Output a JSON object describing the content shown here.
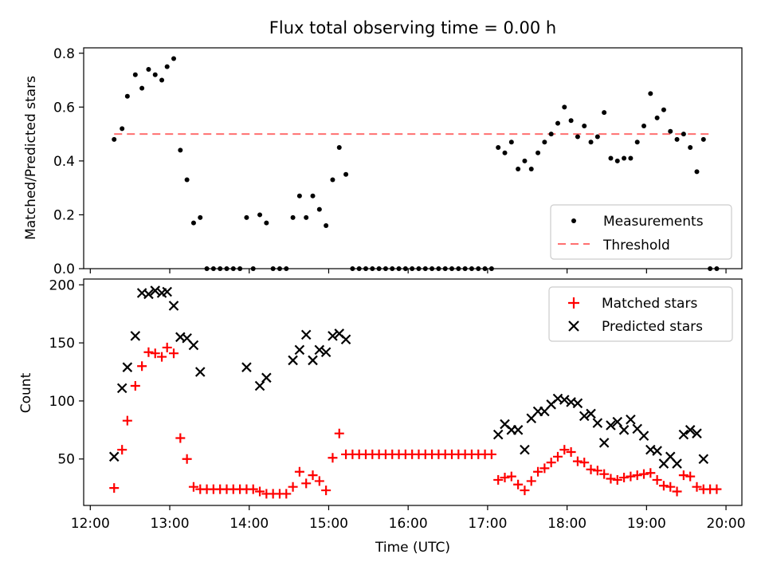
{
  "title": "Flux total observing time = 0.00 h",
  "chart_data": [
    {
      "type": "scatter",
      "ylabel": "Matched/Predicted stars",
      "ylim": [
        0,
        0.82
      ],
      "yticks": [
        "0.0",
        "0.2",
        "0.4",
        "0.6",
        "0.8"
      ],
      "xlim": [
        "11:55",
        "20:12"
      ],
      "legend_position": "lower-right",
      "threshold": {
        "name": "Threshold",
        "value": 0.5,
        "x_start": "12:18",
        "x_end": "19:50",
        "color": "#ff7070"
      },
      "series": [
        {
          "name": "Measurements",
          "color": "#000000",
          "points": [
            [
              "12:18",
              0.48
            ],
            [
              "12:24",
              0.52
            ],
            [
              "12:28",
              0.64
            ],
            [
              "12:34",
              0.72
            ],
            [
              "12:39",
              0.67
            ],
            [
              "12:44",
              0.74
            ],
            [
              "12:49",
              0.72
            ],
            [
              "12:54",
              0.7
            ],
            [
              "12:58",
              0.75
            ],
            [
              "13:03",
              0.78
            ],
            [
              "13:08",
              0.44
            ],
            [
              "13:13",
              0.33
            ],
            [
              "13:18",
              0.17
            ],
            [
              "13:23",
              0.19
            ],
            [
              "13:28",
              0.0
            ],
            [
              "13:33",
              0.0
            ],
            [
              "13:38",
              0.0
            ],
            [
              "13:43",
              0.0
            ],
            [
              "13:48",
              0.0
            ],
            [
              "13:53",
              0.0
            ],
            [
              "13:58",
              0.19
            ],
            [
              "14:03",
              0.0
            ],
            [
              "14:08",
              0.2
            ],
            [
              "14:13",
              0.17
            ],
            [
              "14:18",
              0.0
            ],
            [
              "14:23",
              0.0
            ],
            [
              "14:28",
              0.0
            ],
            [
              "14:33",
              0.19
            ],
            [
              "14:38",
              0.27
            ],
            [
              "14:43",
              0.19
            ],
            [
              "14:48",
              0.27
            ],
            [
              "14:53",
              0.22
            ],
            [
              "14:58",
              0.16
            ],
            [
              "15:03",
              0.33
            ],
            [
              "15:08",
              0.45
            ],
            [
              "15:13",
              0.35
            ],
            [
              "15:18",
              0.0
            ],
            [
              "15:23",
              0.0
            ],
            [
              "15:28",
              0.0
            ],
            [
              "15:33",
              0.0
            ],
            [
              "15:38",
              0.0
            ],
            [
              "15:43",
              0.0
            ],
            [
              "15:48",
              0.0
            ],
            [
              "15:53",
              0.0
            ],
            [
              "15:58",
              0.0
            ],
            [
              "16:03",
              0.0
            ],
            [
              "16:08",
              0.0
            ],
            [
              "16:13",
              0.0
            ],
            [
              "16:18",
              0.0
            ],
            [
              "16:23",
              0.0
            ],
            [
              "16:28",
              0.0
            ],
            [
              "16:33",
              0.0
            ],
            [
              "16:38",
              0.0
            ],
            [
              "16:43",
              0.0
            ],
            [
              "16:48",
              0.0
            ],
            [
              "16:53",
              0.0
            ],
            [
              "16:58",
              0.0
            ],
            [
              "17:03",
              0.0
            ],
            [
              "17:08",
              0.45
            ],
            [
              "17:13",
              0.43
            ],
            [
              "17:18",
              0.47
            ],
            [
              "17:23",
              0.37
            ],
            [
              "17:28",
              0.4
            ],
            [
              "17:33",
              0.37
            ],
            [
              "17:38",
              0.43
            ],
            [
              "17:43",
              0.47
            ],
            [
              "17:48",
              0.5
            ],
            [
              "17:53",
              0.54
            ],
            [
              "17:58",
              0.6
            ],
            [
              "18:03",
              0.55
            ],
            [
              "18:08",
              0.49
            ],
            [
              "18:13",
              0.53
            ],
            [
              "18:18",
              0.47
            ],
            [
              "18:23",
              0.49
            ],
            [
              "18:28",
              0.58
            ],
            [
              "18:33",
              0.41
            ],
            [
              "18:38",
              0.4
            ],
            [
              "18:43",
              0.41
            ],
            [
              "18:48",
              0.41
            ],
            [
              "18:53",
              0.47
            ],
            [
              "18:58",
              0.53
            ],
            [
              "19:03",
              0.65
            ],
            [
              "19:08",
              0.56
            ],
            [
              "19:13",
              0.59
            ],
            [
              "19:18",
              0.51
            ],
            [
              "19:23",
              0.48
            ],
            [
              "19:28",
              0.5
            ],
            [
              "19:33",
              0.45
            ],
            [
              "19:38",
              0.36
            ],
            [
              "19:43",
              0.48
            ],
            [
              "19:48",
              0.0
            ],
            [
              "19:53",
              0.0
            ]
          ]
        }
      ]
    },
    {
      "type": "scatter",
      "xlabel": "Time (UTC)",
      "ylabel": "Count",
      "ylim": [
        10,
        205
      ],
      "yticks": [
        "50",
        "100",
        "150",
        "200"
      ],
      "xlim": [
        "11:55",
        "20:12"
      ],
      "xticks": [
        "12:00",
        "13:00",
        "14:00",
        "15:00",
        "16:00",
        "17:00",
        "18:00",
        "19:00",
        "20:00"
      ],
      "legend_position": "upper-right",
      "series": [
        {
          "name": "Matched stars",
          "color": "#ff0000",
          "marker": "plus",
          "points": [
            [
              "12:18",
              25
            ],
            [
              "12:24",
              58
            ],
            [
              "12:28",
              83
            ],
            [
              "12:34",
              113
            ],
            [
              "12:39",
              130
            ],
            [
              "12:44",
              142
            ],
            [
              "12:49",
              141
            ],
            [
              "12:54",
              138
            ],
            [
              "12:58",
              146
            ],
            [
              "13:03",
              141
            ],
            [
              "13:08",
              68
            ],
            [
              "13:13",
              50
            ],
            [
              "13:18",
              26
            ],
            [
              "13:23",
              24
            ],
            [
              "13:28",
              24
            ],
            [
              "13:33",
              24
            ],
            [
              "13:38",
              24
            ],
            [
              "13:43",
              24
            ],
            [
              "13:48",
              24
            ],
            [
              "13:53",
              24
            ],
            [
              "13:58",
              24
            ],
            [
              "14:03",
              24
            ],
            [
              "14:08",
              22
            ],
            [
              "14:13",
              20
            ],
            [
              "14:18",
              20
            ],
            [
              "14:23",
              20
            ],
            [
              "14:28",
              20
            ],
            [
              "14:33",
              26
            ],
            [
              "14:38",
              39
            ],
            [
              "14:43",
              29
            ],
            [
              "14:48",
              36
            ],
            [
              "14:53",
              31
            ],
            [
              "14:58",
              23
            ],
            [
              "15:03",
              51
            ],
            [
              "15:08",
              72
            ],
            [
              "15:13",
              54
            ],
            [
              "15:18",
              54
            ],
            [
              "15:23",
              54
            ],
            [
              "15:28",
              54
            ],
            [
              "15:33",
              54
            ],
            [
              "15:38",
              54
            ],
            [
              "15:43",
              54
            ],
            [
              "15:48",
              54
            ],
            [
              "15:53",
              54
            ],
            [
              "15:58",
              54
            ],
            [
              "16:03",
              54
            ],
            [
              "16:08",
              54
            ],
            [
              "16:13",
              54
            ],
            [
              "16:18",
              54
            ],
            [
              "16:23",
              54
            ],
            [
              "16:28",
              54
            ],
            [
              "16:33",
              54
            ],
            [
              "16:38",
              54
            ],
            [
              "16:43",
              54
            ],
            [
              "16:48",
              54
            ],
            [
              "16:53",
              54
            ],
            [
              "16:58",
              54
            ],
            [
              "17:03",
              54
            ],
            [
              "17:08",
              32
            ],
            [
              "17:13",
              34
            ],
            [
              "17:18",
              35
            ],
            [
              "17:23",
              28
            ],
            [
              "17:28",
              23
            ],
            [
              "17:33",
              31
            ],
            [
              "17:38",
              39
            ],
            [
              "17:43",
              42
            ],
            [
              "17:48",
              47
            ],
            [
              "17:53",
              52
            ],
            [
              "17:58",
              58
            ],
            [
              "18:03",
              56
            ],
            [
              "18:08",
              48
            ],
            [
              "18:13",
              47
            ],
            [
              "18:18",
              41
            ],
            [
              "18:23",
              40
            ],
            [
              "18:28",
              37
            ],
            [
              "18:33",
              33
            ],
            [
              "18:38",
              32
            ],
            [
              "18:43",
              34
            ],
            [
              "18:48",
              35
            ],
            [
              "18:53",
              36
            ],
            [
              "18:58",
              37
            ],
            [
              "19:03",
              38
            ],
            [
              "19:08",
              32
            ],
            [
              "19:13",
              27
            ],
            [
              "19:18",
              26
            ],
            [
              "19:23",
              22
            ],
            [
              "19:28",
              36
            ],
            [
              "19:33",
              35
            ],
            [
              "19:38",
              26
            ],
            [
              "19:43",
              24
            ],
            [
              "19:48",
              24
            ],
            [
              "19:53",
              24
            ]
          ]
        },
        {
          "name": "Predicted stars",
          "color": "#000000",
          "marker": "x",
          "points": [
            [
              "12:18",
              52
            ],
            [
              "12:24",
              111
            ],
            [
              "12:28",
              129
            ],
            [
              "12:34",
              156
            ],
            [
              "12:39",
              193
            ],
            [
              "12:44",
              192
            ],
            [
              "12:49",
              195
            ],
            [
              "12:54",
              193
            ],
            [
              "12:58",
              194
            ],
            [
              "13:03",
              182
            ],
            [
              "13:08",
              155
            ],
            [
              "13:13",
              154
            ],
            [
              "13:18",
              148
            ],
            [
              "13:23",
              125
            ],
            [
              "13:58",
              129
            ],
            [
              "14:08",
              113
            ],
            [
              "14:13",
              120
            ],
            [
              "14:33",
              135
            ],
            [
              "14:38",
              144
            ],
            [
              "14:43",
              157
            ],
            [
              "14:48",
              135
            ],
            [
              "14:53",
              144
            ],
            [
              "14:58",
              142
            ],
            [
              "15:03",
              156
            ],
            [
              "15:08",
              158
            ],
            [
              "15:13",
              153
            ],
            [
              "17:08",
              71
            ],
            [
              "17:13",
              80
            ],
            [
              "17:18",
              75
            ],
            [
              "17:23",
              75
            ],
            [
              "17:28",
              58
            ],
            [
              "17:33",
              85
            ],
            [
              "17:38",
              91
            ],
            [
              "17:43",
              91
            ],
            [
              "17:48",
              97
            ],
            [
              "17:53",
              102
            ],
            [
              "17:58",
              101
            ],
            [
              "18:03",
              99
            ],
            [
              "18:08",
              98
            ],
            [
              "18:13",
              87
            ],
            [
              "18:18",
              89
            ],
            [
              "18:23",
              81
            ],
            [
              "18:28",
              64
            ],
            [
              "18:33",
              79
            ],
            [
              "18:38",
              82
            ],
            [
              "18:43",
              75
            ],
            [
              "18:48",
              84
            ],
            [
              "18:53",
              76
            ],
            [
              "18:58",
              70
            ],
            [
              "19:03",
              58
            ],
            [
              "19:08",
              57
            ],
            [
              "19:13",
              46
            ],
            [
              "19:18",
              52
            ],
            [
              "19:23",
              46
            ],
            [
              "19:28",
              71
            ],
            [
              "19:33",
              75
            ],
            [
              "19:38",
              72
            ],
            [
              "19:43",
              50
            ]
          ]
        }
      ]
    }
  ]
}
